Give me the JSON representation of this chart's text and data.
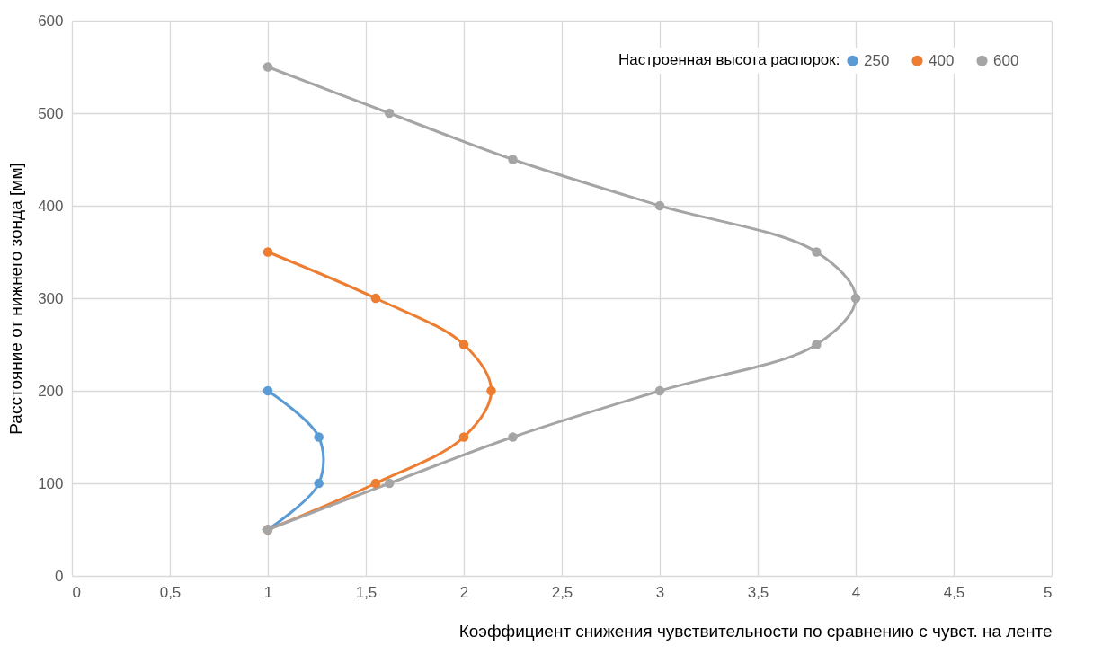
{
  "chart_data": {
    "type": "line",
    "xlabel": "Коэффициент снижения чувствительности по сравнению с чувст. на ленте",
    "ylabel": "Расстояние от нижнего зонда [мм]",
    "legend_title": "Настроенная высота распорок:",
    "legend": "top right",
    "grid": true,
    "marker": "circle",
    "line_style": "solid",
    "xlim": [
      0,
      5
    ],
    "xticks": [
      0,
      {
        "value": 0.5,
        "label": "0,5"
      },
      1,
      {
        "value": 1.5,
        "label": "1,5"
      },
      2,
      {
        "value": 2.5,
        "label": "2,5"
      },
      3,
      {
        "value": 3.5,
        "label": "3,5"
      },
      4,
      {
        "value": 4.5,
        "label": "4,5"
      },
      5
    ],
    "ylim": [
      0,
      600
    ],
    "yticks": [
      0,
      100,
      200,
      300,
      400,
      500,
      600
    ],
    "series": [
      {
        "name": "250",
        "color": "#5b9bd5",
        "x": [
          1,
          1.26,
          1.26,
          1
        ],
        "values": [
          50,
          100,
          150,
          200
        ]
      },
      {
        "name": "400",
        "color": "#ed7d31",
        "x": [
          1,
          1.55,
          2,
          2.14,
          2,
          1.55,
          1
        ],
        "values": [
          50,
          100,
          150,
          200,
          250,
          300,
          350
        ]
      },
      {
        "name": "600",
        "color": "#a5a5a5",
        "x": [
          1,
          1.62,
          2.25,
          3,
          3.8,
          4,
          3.8,
          3,
          2.25,
          1.62,
          1
        ],
        "values": [
          50,
          100,
          150,
          200,
          250,
          300,
          350,
          400,
          450,
          500,
          550
        ]
      }
    ]
  }
}
